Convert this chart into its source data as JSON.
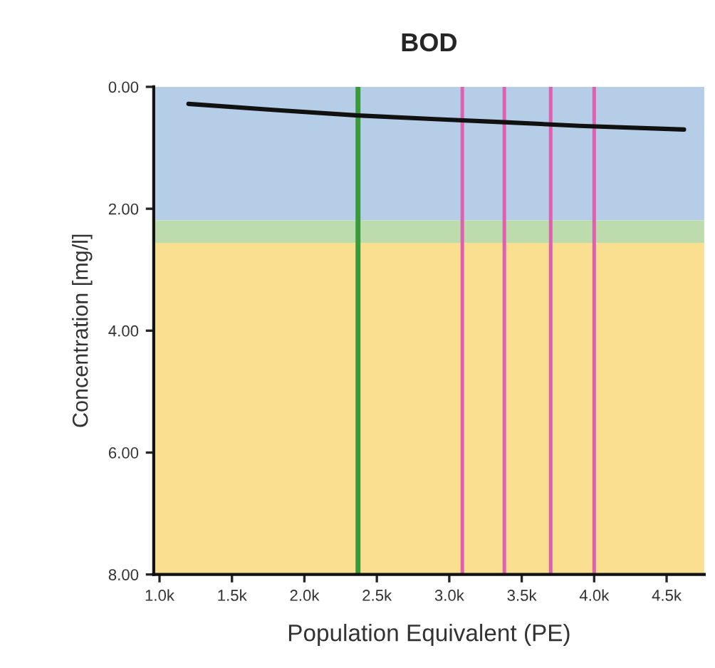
{
  "chart_data": {
    "type": "line",
    "title": "BOD",
    "xlabel": "Population Equivalent (PE)",
    "ylabel": "Concentration [mg/l]",
    "x": [
      1200,
      1800,
      2370,
      2900,
      3380,
      3900,
      4620
    ],
    "series": [
      {
        "color": "#111111",
        "values": [
          0.28,
          0.38,
          0.47,
          0.53,
          0.58,
          0.64,
          0.7
        ]
      }
    ],
    "xlim": [
      960,
      4760
    ],
    "ylim": [
      8,
      0
    ],
    "xticks": [
      {
        "value": 1000,
        "label": "1.0k"
      },
      {
        "value": 1500,
        "label": "1.5k"
      },
      {
        "value": 2000,
        "label": "2.0k"
      },
      {
        "value": 2500,
        "label": "2.5k"
      },
      {
        "value": 3000,
        "label": "3.0k"
      },
      {
        "value": 3500,
        "label": "3.5k"
      },
      {
        "value": 4000,
        "label": "4.0k"
      },
      {
        "value": 4500,
        "label": "4.5k"
      }
    ],
    "yticks": [
      {
        "value": 0,
        "label": "0.00"
      },
      {
        "value": 2,
        "label": "2.00"
      },
      {
        "value": 4,
        "label": "4.00"
      },
      {
        "value": 6,
        "label": "6.00"
      },
      {
        "value": 8,
        "label": "8.00"
      }
    ],
    "bands": [
      {
        "axis": "y",
        "from": 0,
        "to": 2.19,
        "color": "#b6cde8"
      },
      {
        "axis": "y",
        "from": 2.19,
        "to": 2.56,
        "color": "#bcdcae"
      },
      {
        "axis": "y",
        "from": 2.56,
        "to": 8,
        "color": "#fbdf90"
      }
    ],
    "ref_lines": [
      {
        "axis": "x",
        "value": 2370,
        "color": "#3a9a3a"
      },
      {
        "axis": "x",
        "value": 3090,
        "color": "#e060b0"
      },
      {
        "axis": "x",
        "value": 3380,
        "color": "#e060b0"
      },
      {
        "axis": "x",
        "value": 3700,
        "color": "#e060b0"
      },
      {
        "axis": "x",
        "value": 4000,
        "color": "#e060b0"
      }
    ],
    "grid": false,
    "legend": false,
    "marker": "none",
    "line_style": "solid"
  }
}
